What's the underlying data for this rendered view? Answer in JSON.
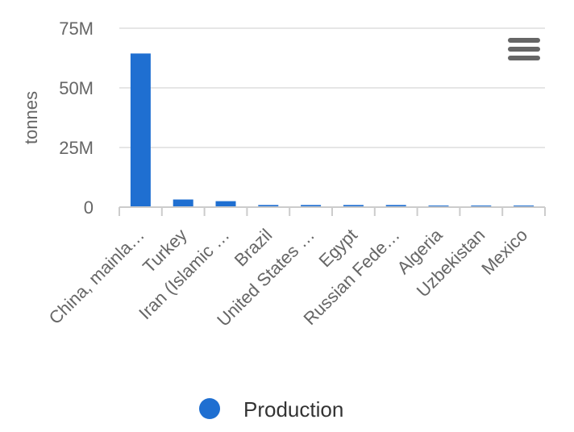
{
  "chart_data": {
    "type": "bar",
    "title": "",
    "xlabel": "",
    "ylabel": "tonnes",
    "categories": [
      "China, mainla…",
      "Turkey",
      "Iran (Islamic …",
      "Brazil",
      "United States …",
      "Egypt",
      "Russian Fede…",
      "Algeria",
      "Uzbekistan",
      "Mexico"
    ],
    "series": [
      {
        "name": "Production",
        "values": [
          64400000,
          3200000,
          2500000,
          900000,
          900000,
          900000,
          900000,
          300000,
          250000,
          200000
        ]
      }
    ],
    "ylim": [
      0,
      75000000
    ],
    "yticks": [
      0,
      25000000,
      50000000,
      75000000
    ],
    "ytick_labels": [
      "0",
      "25M",
      "50M",
      "75M"
    ],
    "grid": true,
    "legend_position": "bottom",
    "colors": {
      "bar": "#1f6fd1",
      "grid": "#e6e6e6",
      "axis": "#cccccc",
      "menu_icon": "#666666"
    }
  },
  "ui": {
    "menu_icon": "hamburger-menu-icon"
  }
}
